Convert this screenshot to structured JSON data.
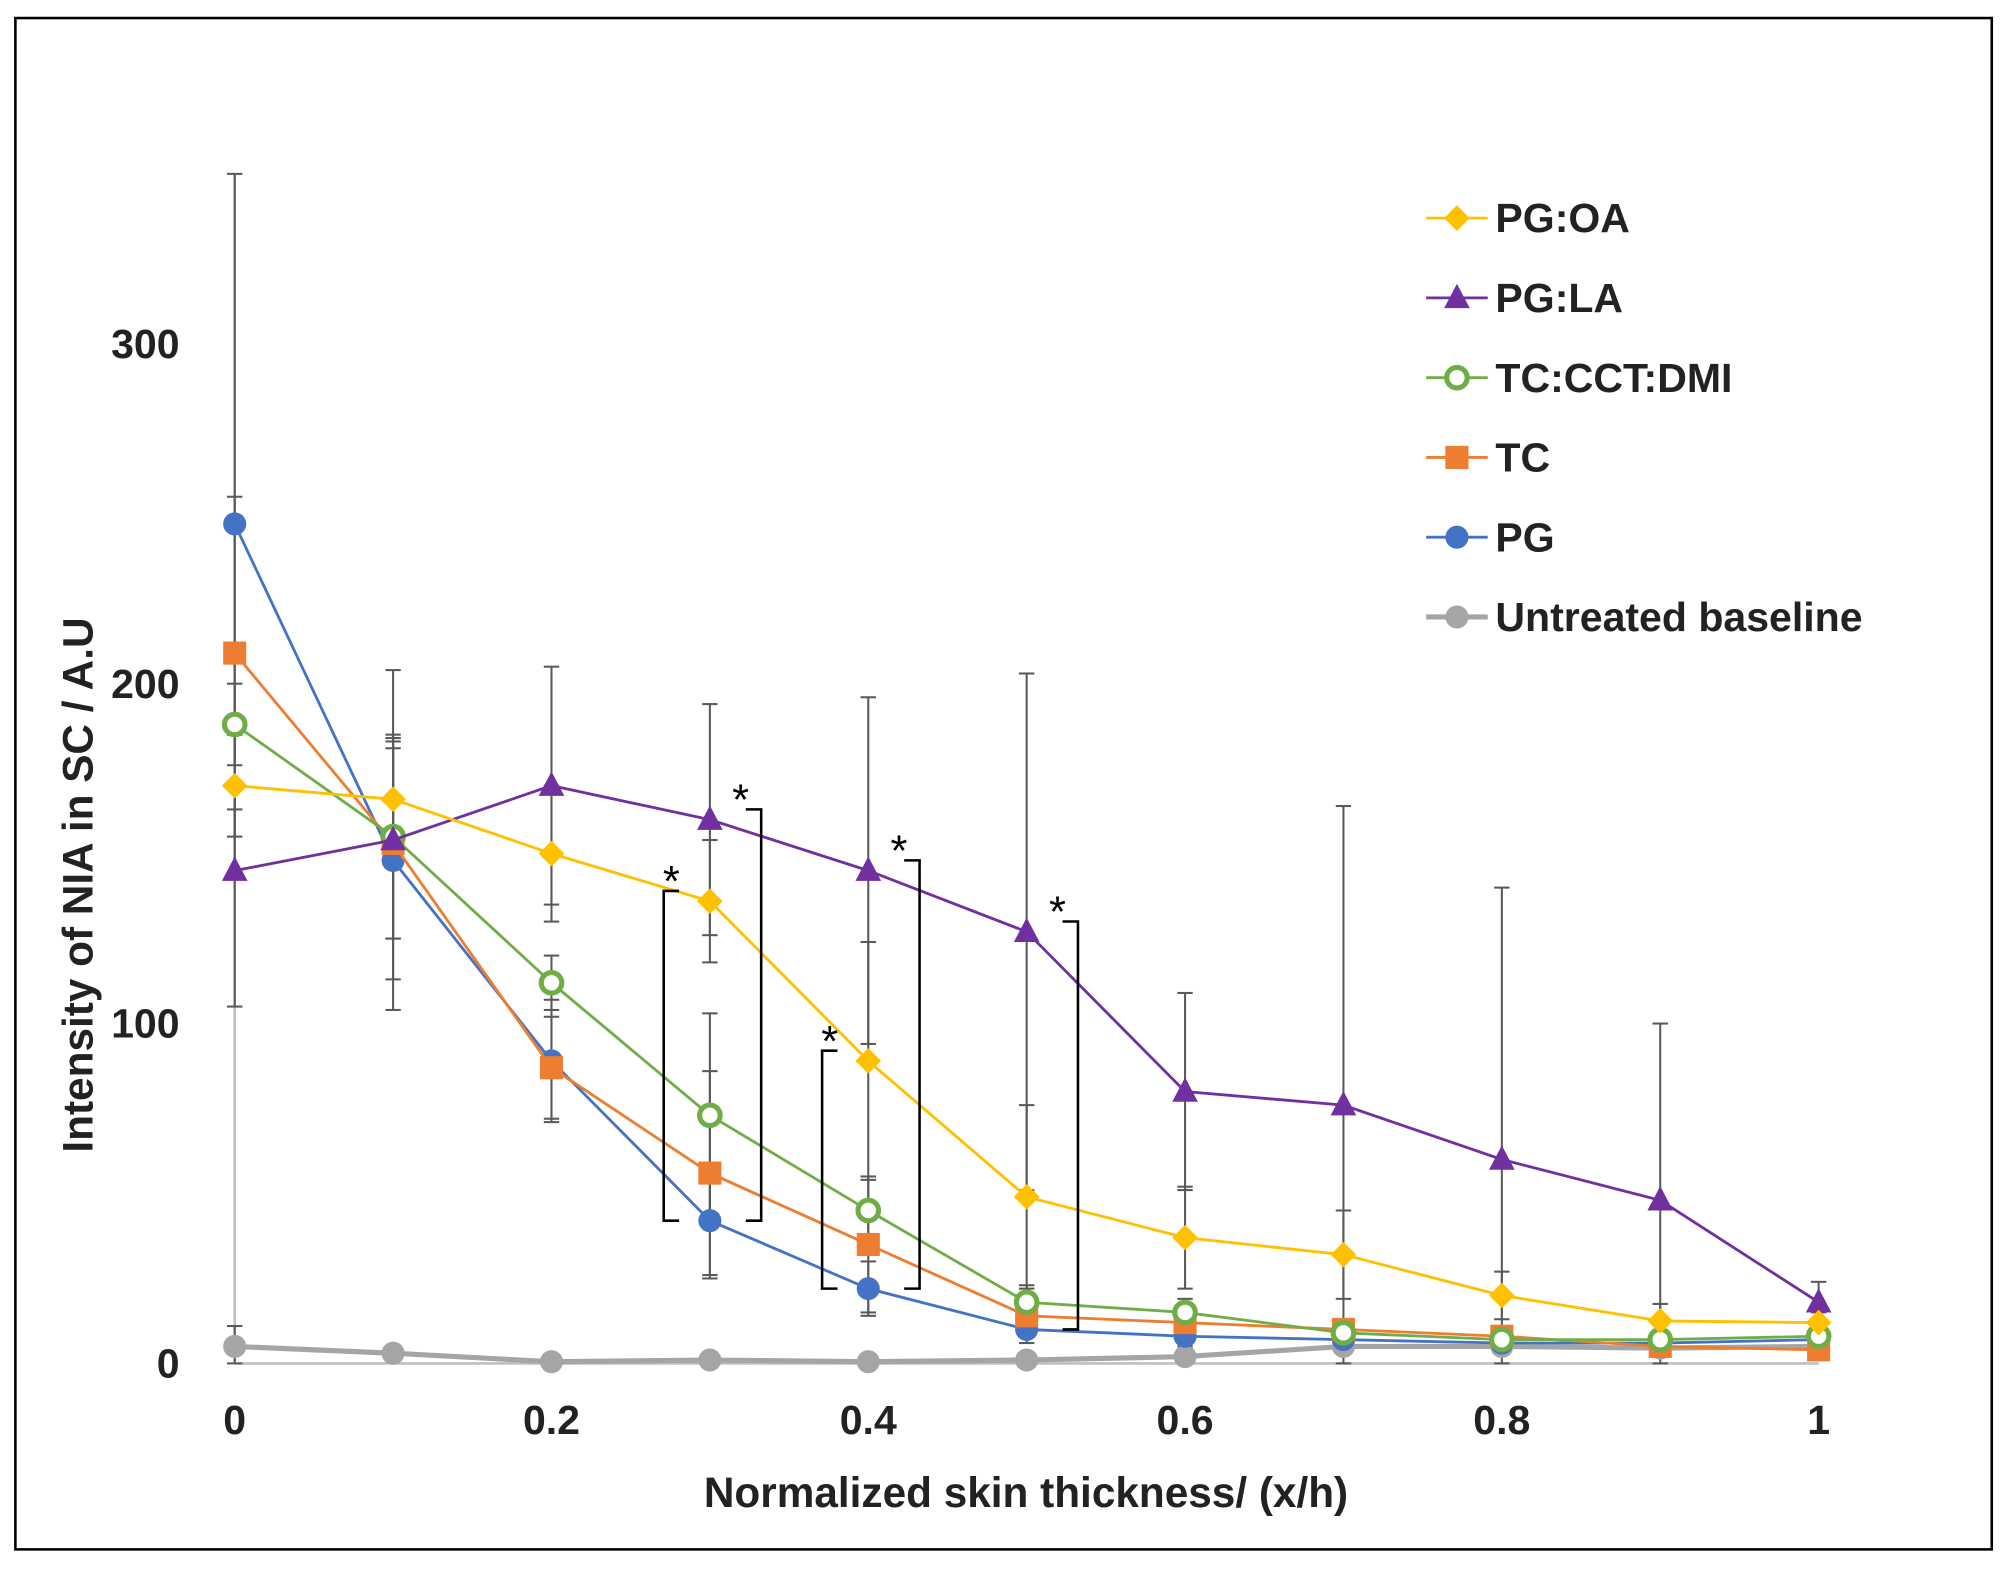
{
  "chart_data": {
    "type": "line",
    "title": "",
    "xlabel": "Normalized skin thickness/ (x/h)",
    "ylabel": "Intensity of NIA in SC / A.U",
    "xlim": [
      0,
      1
    ],
    "ylim": [
      0,
      350
    ],
    "x": [
      0,
      0.1,
      0.2,
      0.3,
      0.4,
      0.5,
      0.6,
      0.7,
      0.8,
      0.9,
      1
    ],
    "xticks": [
      "0",
      "0.2",
      "0.4",
      "0.6",
      "0.8",
      "1"
    ],
    "xtick_values": [
      0,
      0.2,
      0.4,
      0.6,
      0.8,
      1
    ],
    "yticks": [
      "0",
      "100",
      "200",
      "300"
    ],
    "ytick_values": [
      0,
      100,
      200,
      300
    ],
    "grid": false,
    "legend_position": "top-right",
    "series": [
      {
        "name": "Untreated baseline",
        "color": "#A5A5A5",
        "marker": "circle",
        "values": [
          5,
          3,
          0.5,
          1,
          0.5,
          1,
          2,
          5,
          5,
          4.5,
          5
        ],
        "error": [
          6,
          2,
          1,
          1,
          1,
          1,
          1,
          1,
          1,
          1,
          1
        ]
      },
      {
        "name": "PG",
        "color": "#4472C4",
        "marker": "circle",
        "values": [
          247,
          148,
          89,
          42,
          22,
          10,
          8,
          7,
          6,
          6,
          7
        ],
        "error": [
          103,
          35,
          18,
          17,
          8,
          4,
          3,
          2,
          2,
          2,
          2
        ]
      },
      {
        "name": "TC",
        "color": "#ED7D31",
        "marker": "square",
        "values": [
          209,
          153,
          87,
          56,
          35,
          14,
          12,
          10,
          8,
          5,
          4
        ],
        "error": [
          46,
          28,
          15,
          30,
          20,
          5,
          3,
          3,
          2,
          2,
          2
        ]
      },
      {
        "name": "TC:CCT:DMI",
        "color": "#70AD47",
        "marker": "open-circle",
        "values": [
          188,
          155,
          112,
          73,
          45,
          18,
          15,
          9,
          7,
          7,
          8
        ],
        "error": [
          12,
          30,
          8,
          30,
          10,
          5,
          4,
          3,
          3,
          2,
          2
        ]
      },
      {
        "name": "PG:LA",
        "color": "#7030A0",
        "marker": "triangle",
        "values": [
          145,
          154,
          170,
          160,
          145,
          127,
          80,
          76,
          60,
          48,
          18
        ],
        "error": [
          40,
          50,
          35,
          34,
          51,
          76,
          29,
          88,
          80,
          52,
          6
        ]
      },
      {
        "name": "PG:OA",
        "color": "#FFC000",
        "marker": "diamond",
        "values": [
          170,
          166,
          150,
          136,
          89,
          49,
          37,
          32,
          20,
          12.5,
          12
        ],
        "error": [
          15,
          18,
          20,
          18,
          35,
          27,
          15,
          13,
          7,
          5,
          3
        ]
      }
    ],
    "legend_order": [
      "PG:OA",
      "PG:LA",
      "TC:CCT:DMI",
      "TC",
      "PG",
      "Untreated baseline"
    ],
    "annotations": [
      {
        "text": "*",
        "x": 0.3,
        "side": "left",
        "from": 136,
        "to": 42
      },
      {
        "text": "*",
        "x": 0.3,
        "side": "right",
        "from": 160,
        "to": 42
      },
      {
        "text": "*",
        "x": 0.4,
        "side": "left",
        "from": 89,
        "to": 22
      },
      {
        "text": "*",
        "x": 0.4,
        "side": "right",
        "from": 145,
        "to": 22
      },
      {
        "text": "*",
        "x": 0.5,
        "side": "right",
        "from": 127,
        "to": 10
      }
    ]
  }
}
